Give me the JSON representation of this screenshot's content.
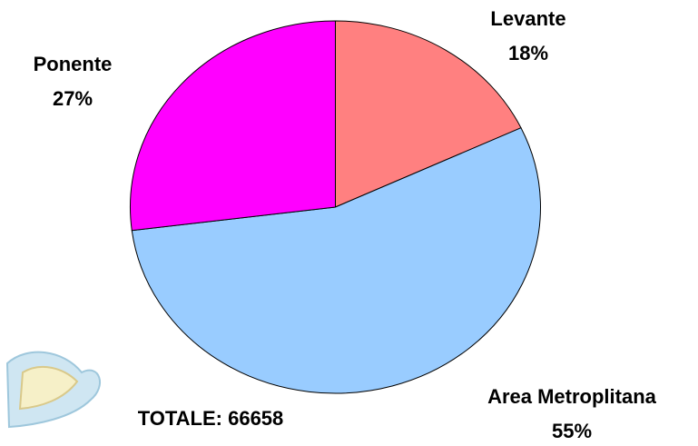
{
  "chart_data": {
    "type": "pie",
    "categories": [
      "Levante",
      "Area Metroplitana",
      "Ponente"
    ],
    "values": [
      18,
      55,
      27
    ],
    "value_labels": [
      "18%",
      "55%",
      "27%"
    ],
    "colors": [
      "#ff8080",
      "#99ccff",
      "#ff00ff"
    ],
    "annotation": "TOTALE: 66658"
  }
}
